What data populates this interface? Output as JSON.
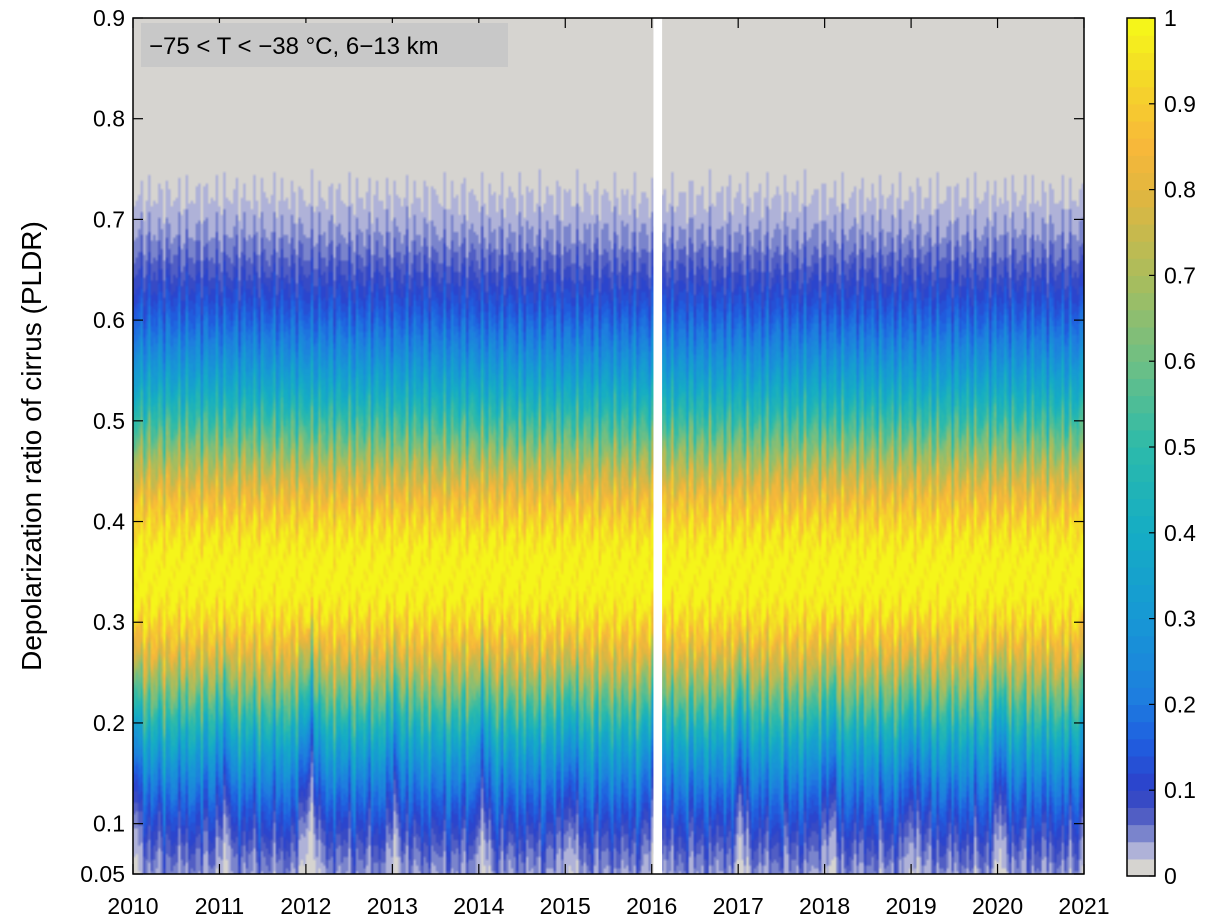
{
  "chart_data": {
    "type": "heatmap",
    "title": "",
    "xlabel": "",
    "ylabel": "Depolarization ratio of cirrus (PLDR)",
    "annotation": "−75 < T < −38 °C, 6−13 km",
    "xlim": [
      2010,
      2021
    ],
    "ylim": [
      0.05,
      0.9
    ],
    "x_ticks": [
      2010,
      2011,
      2012,
      2013,
      2014,
      2015,
      2016,
      2017,
      2018,
      2019,
      2020,
      2021
    ],
    "y_ticks": [
      0.05,
      0.1,
      0.2,
      0.3,
      0.4,
      0.5,
      0.6,
      0.7,
      0.8,
      0.9
    ],
    "y_tick_labels": [
      "0.05",
      "0.1",
      "0.2",
      "0.3",
      "0.4",
      "0.5",
      "0.6",
      "0.7",
      "0.8",
      "0.9"
    ],
    "data_gap": [
      2016.02,
      2016.12
    ],
    "colorbar": {
      "range": [
        0,
        1
      ],
      "ticks": [
        0,
        0.1,
        0.2,
        0.3,
        0.4,
        0.5,
        0.6,
        0.7,
        0.8,
        0.9,
        1
      ],
      "tick_labels": [
        "0",
        "0.1",
        "0.2",
        "0.3",
        "0.4",
        "0.5",
        "0.6",
        "0.7",
        "0.8",
        "0.9",
        "1"
      ],
      "levels": 50,
      "stops": [
        {
          "v": 0.0,
          "color": "#d6d4d0"
        },
        {
          "v": 0.02,
          "color": "#b0b3d8"
        },
        {
          "v": 0.04,
          "color": "#7c85cc"
        },
        {
          "v": 0.07,
          "color": "#3f4ec0"
        },
        {
          "v": 0.1,
          "color": "#2b44cc"
        },
        {
          "v": 0.15,
          "color": "#1f5fe0"
        },
        {
          "v": 0.2,
          "color": "#1e7ddf"
        },
        {
          "v": 0.3,
          "color": "#1799d4"
        },
        {
          "v": 0.4,
          "color": "#15adc4"
        },
        {
          "v": 0.5,
          "color": "#2cbaaa"
        },
        {
          "v": 0.6,
          "color": "#6dbf85"
        },
        {
          "v": 0.7,
          "color": "#a9bd5d"
        },
        {
          "v": 0.8,
          "color": "#e0b640"
        },
        {
          "v": 0.86,
          "color": "#f8b83a"
        },
        {
          "v": 0.93,
          "color": "#f4d52a"
        },
        {
          "v": 1.0,
          "color": "#f5f51a"
        }
      ]
    },
    "profile_description": "normalized frequency; peak ~1 near PLDR 0.33-0.36, ~0.9 at 0.25 and 0.45, ~0.5 at 0.15 and 0.62, ~0.15 at 0.75, <0.05 above 0.85"
  }
}
